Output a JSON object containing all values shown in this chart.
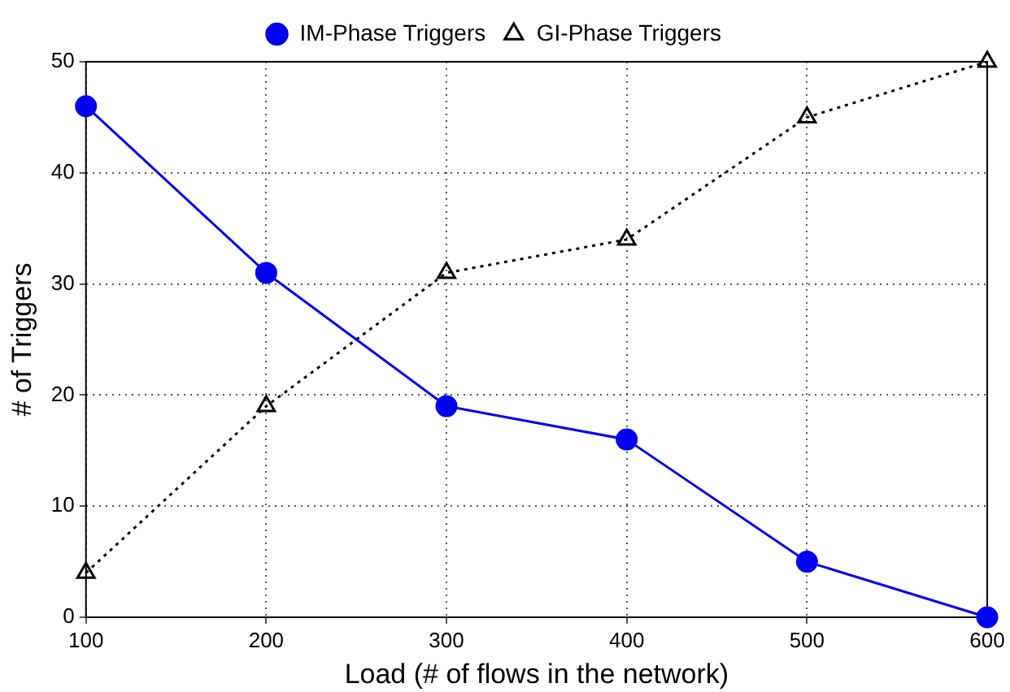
{
  "chart_data": {
    "type": "line",
    "xlabel": "Load (# of flows in the network)",
    "ylabel": "# of Triggers",
    "x": [
      100,
      200,
      300,
      400,
      500,
      600
    ],
    "series": [
      {
        "name": "IM-Phase Triggers",
        "color": "#0000ee",
        "values": [
          46,
          31,
          19,
          16,
          5,
          0
        ],
        "marker": "circle",
        "line_style": "solid"
      },
      {
        "name": "GI-Phase Triggers",
        "color": "#000000",
        "values": [
          4,
          19,
          31,
          34,
          45,
          50
        ],
        "marker": "triangle",
        "line_style": "dotted"
      }
    ],
    "xlim": [
      100,
      600
    ],
    "xticks": [
      100,
      200,
      300,
      400,
      500,
      600
    ],
    "ylim": [
      0,
      50
    ],
    "yticks": [
      0,
      10,
      20,
      30,
      40,
      50
    ],
    "grid": true,
    "legend": "top"
  }
}
